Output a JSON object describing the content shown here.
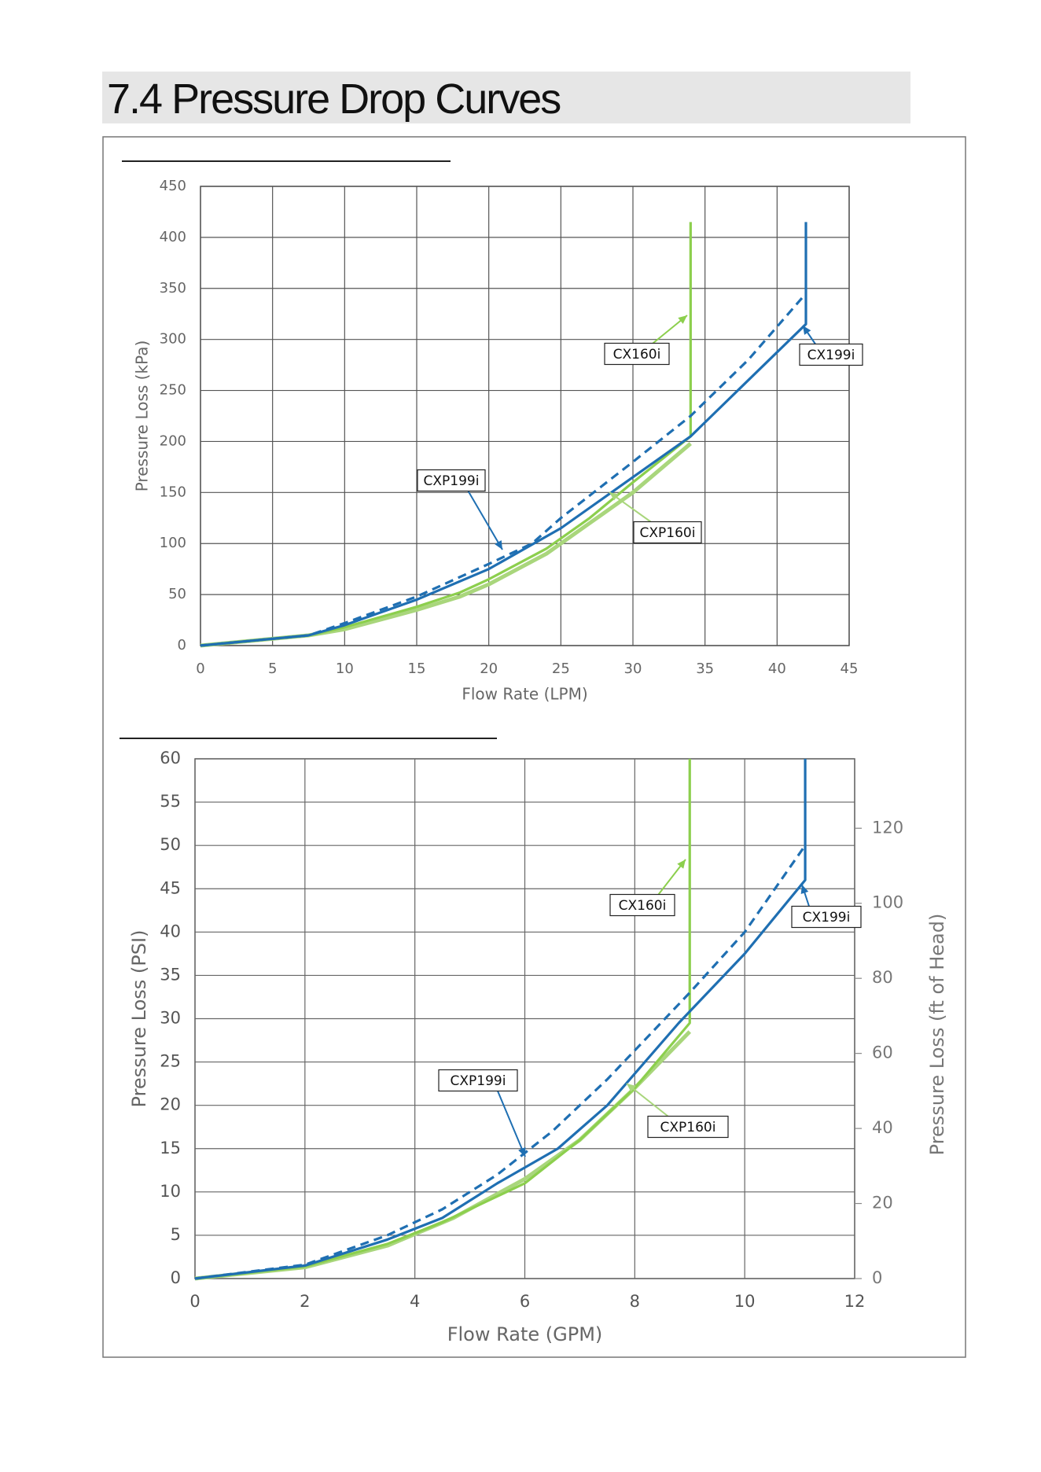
{
  "header": {
    "title": "7.4 Pressure Drop Curves"
  },
  "chart_data": [
    {
      "type": "line",
      "xlabel": "Flow Rate (LPM)",
      "ylabel": "Pressure Loss (kPa)",
      "xlim": [
        0,
        45
      ],
      "ylim": [
        0,
        450
      ],
      "xticks": [
        0,
        5,
        10,
        15,
        20,
        25,
        30,
        35,
        40,
        45
      ],
      "yticks": [
        0,
        50,
        100,
        150,
        200,
        250,
        300,
        350,
        400,
        450
      ],
      "grid": true,
      "series": [
        {
          "name": "CX199i",
          "color": "#1f6fb2",
          "line_style": "solid",
          "x": [
            0,
            7.5,
            10,
            15,
            20,
            25,
            30,
            34,
            38,
            42,
            42
          ],
          "values": [
            0,
            10,
            20,
            45,
            75,
            115,
            165,
            205,
            260,
            315,
            415
          ]
        },
        {
          "name": "CXP199i",
          "color": "#1f6fb2",
          "line_style": "dashed",
          "x": [
            0,
            7.5,
            10,
            15,
            20,
            23,
            25,
            30,
            34,
            38,
            42
          ],
          "values": [
            0,
            10,
            22,
            48,
            80,
            100,
            125,
            180,
            225,
            280,
            345
          ]
        },
        {
          "name": "CX160i",
          "color": "#8ccf4d",
          "line_style": "solid",
          "x": [
            0,
            7.5,
            10,
            15,
            18,
            20,
            24,
            27,
            30,
            34,
            34
          ],
          "values": [
            0,
            10,
            18,
            38,
            52,
            65,
            95,
            125,
            160,
            205,
            415
          ]
        },
        {
          "name": "CXP160i",
          "color": "#a9d67c",
          "line_style": "solid",
          "x": [
            0,
            7.5,
            10,
            15,
            18,
            20,
            24,
            27,
            30,
            34
          ],
          "values": [
            0,
            10,
            16,
            35,
            48,
            60,
            90,
            120,
            150,
            198
          ]
        }
      ]
    },
    {
      "type": "line",
      "xlabel": "Flow Rate (GPM)",
      "ylabel": "Pressure Loss (PSI)",
      "y2label": "Pressure Loss (ft of Head)",
      "xlim": [
        0,
        12
      ],
      "ylim": [
        0,
        60
      ],
      "y2lim": [
        0,
        138.5
      ],
      "xticks": [
        0,
        2,
        4,
        6,
        8,
        10,
        12
      ],
      "yticks": [
        0,
        5,
        10,
        15,
        20,
        25,
        30,
        35,
        40,
        45,
        50,
        55,
        60
      ],
      "y2ticks": [
        0,
        20,
        40,
        60,
        80,
        100,
        120
      ],
      "grid": true,
      "series": [
        {
          "name": "CX199i",
          "color": "#1f6fb2",
          "line_style": "solid",
          "x": [
            0,
            2,
            3.5,
            4.5,
            5.5,
            6.6,
            7.5,
            8.8,
            10,
            11.1,
            11.1
          ],
          "values": [
            0,
            1.5,
            4.5,
            7,
            11,
            15,
            20,
            29.5,
            37.5,
            46,
            60
          ]
        },
        {
          "name": "CXP199i",
          "color": "#1f6fb2",
          "line_style": "dashed",
          "x": [
            0,
            2,
            3.5,
            4.5,
            5.5,
            6.5,
            7.5,
            9,
            10,
            11.1
          ],
          "values": [
            0,
            1.6,
            5,
            8,
            12,
            17,
            23,
            33,
            40,
            50
          ]
        },
        {
          "name": "CX160i",
          "color": "#8ccf4d",
          "line_style": "solid",
          "x": [
            0,
            2,
            3.5,
            4.5,
            6,
            7,
            8,
            9,
            9
          ],
          "values": [
            0,
            1.4,
            4,
            6.5,
            11,
            16,
            22,
            29.5,
            60
          ]
        },
        {
          "name": "CXP160i",
          "color": "#a9d67c",
          "line_style": "solid",
          "x": [
            0,
            2,
            3.5,
            4.7,
            6,
            7,
            8,
            9
          ],
          "values": [
            0,
            1.3,
            3.8,
            7,
            11.5,
            16,
            22,
            28.5
          ]
        }
      ]
    }
  ]
}
